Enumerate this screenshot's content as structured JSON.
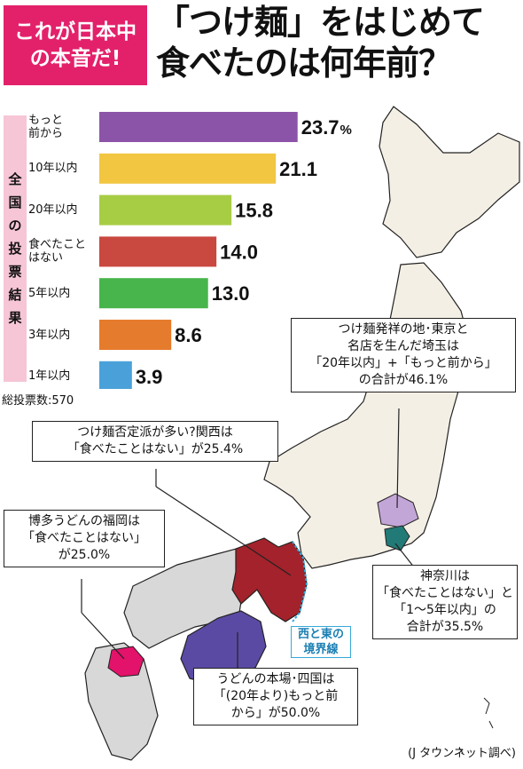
{
  "tag": {
    "line1": "これが日本中",
    "line2": "の本音だ!"
  },
  "headline": {
    "line1": "「つけ麺」をはじめて",
    "line2": "食べたのは何年前？"
  },
  "side_label": [
    "全",
    "国",
    "の",
    "投",
    "票",
    "結",
    "果"
  ],
  "total_votes": "総投票数:570",
  "chart_data": {
    "type": "bar",
    "orientation": "horizontal",
    "categories": [
      [
        "もっと",
        "前から"
      ],
      [
        "10年以内"
      ],
      [
        "20年以内"
      ],
      [
        "食べたこと",
        "はない"
      ],
      [
        "5年以内"
      ],
      [
        "3年以内"
      ],
      [
        "1年以内"
      ]
    ],
    "values": [
      23.7,
      21.1,
      15.8,
      14.0,
      13.0,
      8.6,
      3.9
    ],
    "value_labels": [
      "23.7",
      "21.1",
      "15.8",
      "14.0",
      "13.0",
      "8.6",
      "3.9"
    ],
    "unit": "%",
    "colors": [
      "#8c54a8",
      "#f2c641",
      "#a7cd45",
      "#c9483f",
      "#47b54b",
      "#e57b2c",
      "#4aa1da"
    ]
  },
  "map": {
    "colors": {
      "japan": "#f4efe5",
      "west": "#d8d8d8",
      "kansai": "#a3222b",
      "shikoku": "#5b4aa4",
      "fukuoka": "#e3126a",
      "saitama": "#c3a6d8",
      "kanagawa": "#227a77",
      "boundary": "#37a9d8"
    }
  },
  "callouts": {
    "saitama": [
      "つけ麺発祥の地･東京と",
      "名店を生んだ埼玉は",
      "「20年以内」+「もっと前から」",
      "の合計が46.1%"
    ],
    "kansai": [
      "つけ麺否定派が多い?関西は",
      "「食べたことはない」が25.4%"
    ],
    "fukuoka": [
      "博多うどんの福岡は",
      "「食べたことはない」",
      "が25.0%"
    ],
    "kanagawa": [
      "神奈川は",
      "「食べたことはない」と",
      "「1～5年以内」の",
      "合計が35.5%"
    ],
    "shikoku": [
      "うどんの本場･四国は",
      "「(20年より)もっと前",
      "から」が50.0%"
    ]
  },
  "border_note": [
    "西と東の",
    "境界線"
  ],
  "source": "(J タウンネット調べ)"
}
